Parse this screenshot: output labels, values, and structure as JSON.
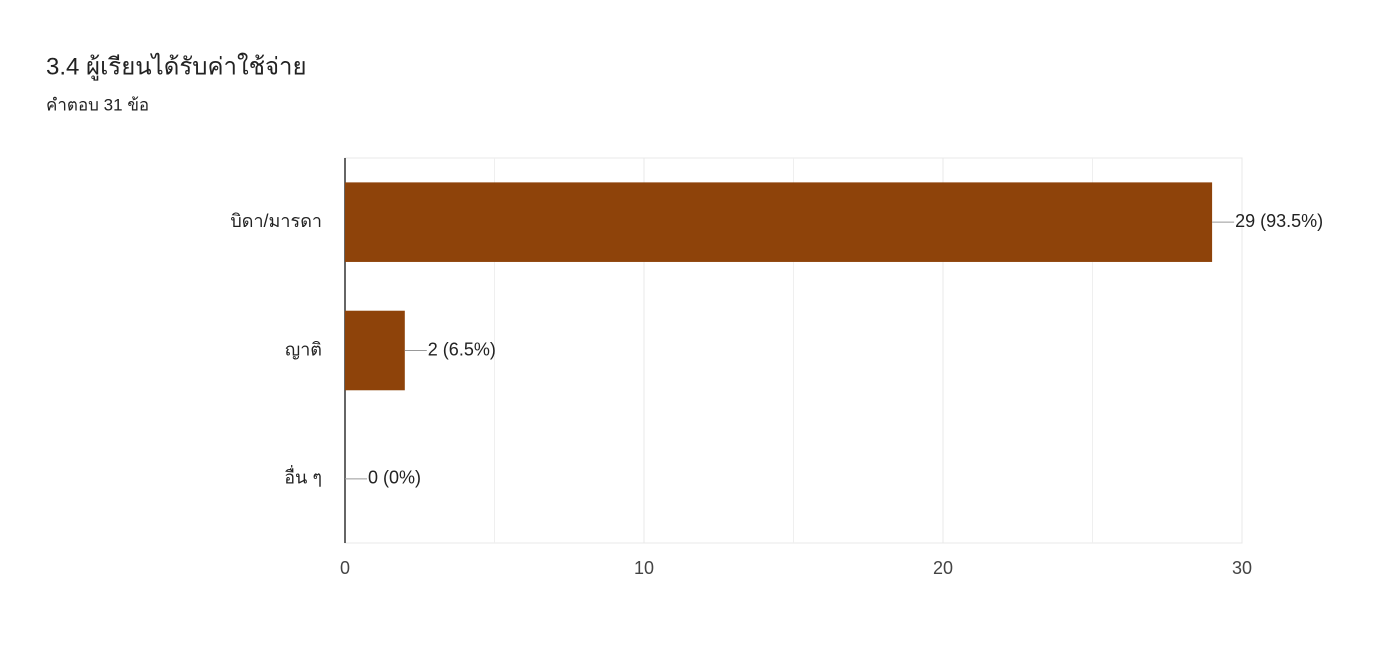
{
  "chart_data": {
    "type": "bar",
    "orientation": "horizontal",
    "title": "3.4 ผู้เรียนได้รับค่าใช้จ่าย",
    "subtitle": "คำตอบ 31 ข้อ",
    "categories": [
      "บิดา/มารดา",
      "ญาติ",
      "อื่น ๆ"
    ],
    "values": [
      29,
      2,
      0
    ],
    "value_labels": [
      "29 (93.5%)",
      "2 (6.5%)",
      "0 (0%)"
    ],
    "color": "#8e430a",
    "xlim": [
      0,
      30
    ],
    "xticks": [
      0,
      10,
      20,
      30
    ],
    "xminorticks": [
      5,
      15,
      25
    ],
    "grid": true
  }
}
